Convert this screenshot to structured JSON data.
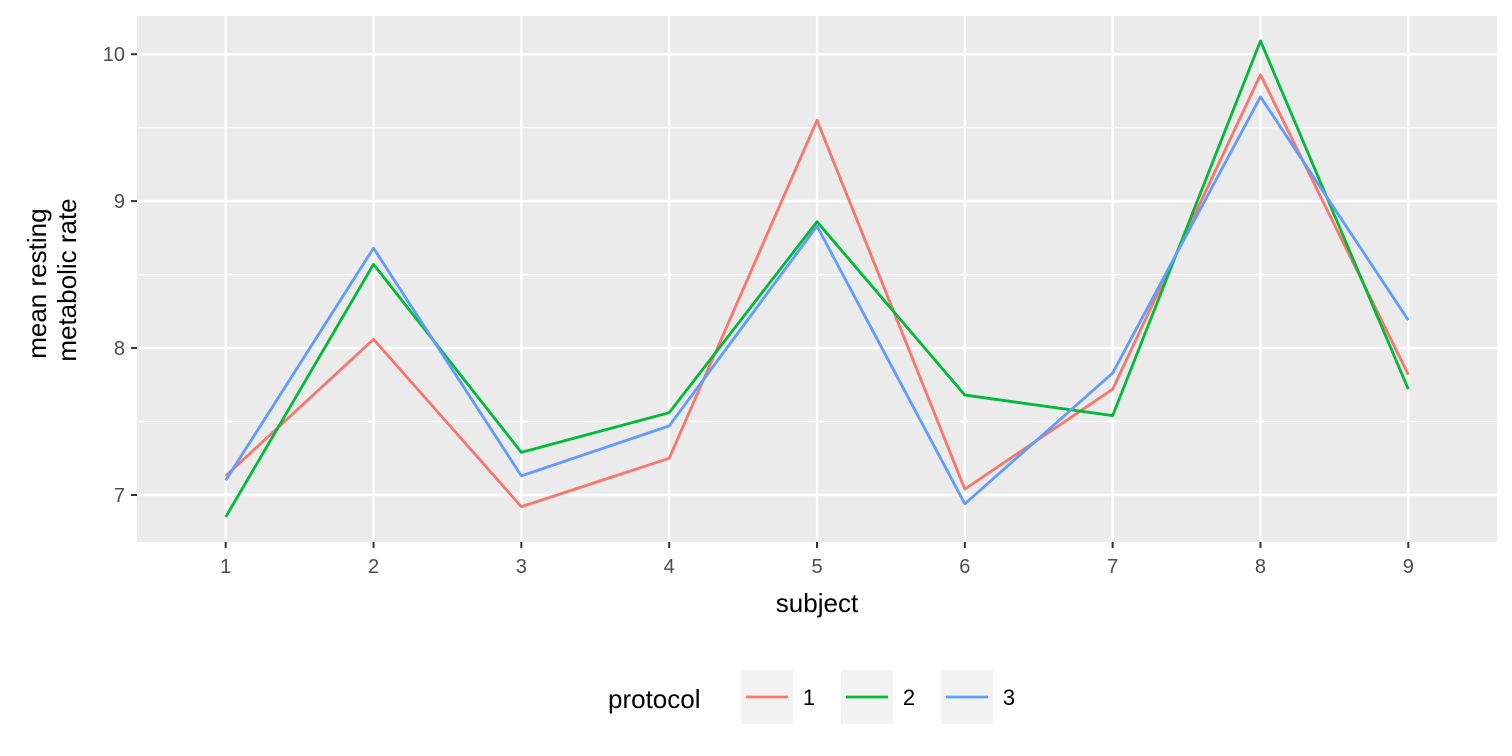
{
  "chart_data": {
    "type": "line",
    "xlabel": "subject",
    "ylabel": [
      "mean resting",
      "metabolic rate"
    ],
    "x": [
      1,
      2,
      3,
      4,
      5,
      6,
      7,
      8,
      9
    ],
    "xlim": [
      0.4,
      9.6
    ],
    "ylim": [
      6.68,
      10.26
    ],
    "yticks": [
      7,
      8,
      9,
      10
    ],
    "grid": true,
    "legend": {
      "title": "protocol",
      "position": "bottom"
    },
    "series": [
      {
        "name": "1",
        "color": "#F8766D",
        "values": [
          7.13,
          8.06,
          6.92,
          7.25,
          9.55,
          7.04,
          7.72,
          9.86,
          7.82
        ]
      },
      {
        "name": "2",
        "color": "#00BA38",
        "values": [
          6.85,
          8.57,
          7.29,
          7.56,
          8.86,
          7.68,
          7.54,
          10.09,
          7.72
        ]
      },
      {
        "name": "3",
        "color": "#619CFF",
        "values": [
          7.1,
          8.68,
          7.13,
          7.47,
          8.83,
          6.94,
          7.83,
          9.71,
          8.19
        ]
      }
    ]
  }
}
